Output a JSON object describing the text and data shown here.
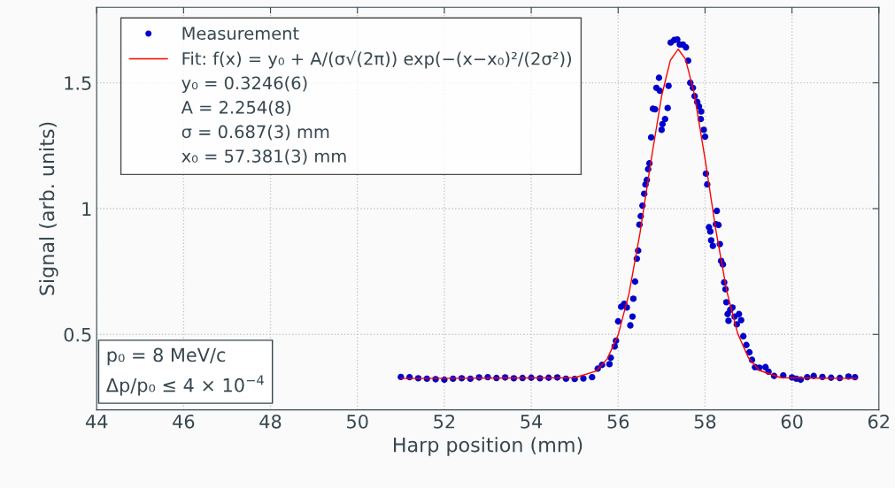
{
  "chart_data": {
    "type": "scatter",
    "xlabel": "Harp position (mm)",
    "ylabel": "Signal (arb. units)",
    "xlim": [
      44,
      62
    ],
    "xticks": [
      44,
      46,
      48,
      50,
      52,
      54,
      56,
      58,
      60,
      62
    ],
    "ylim": [
      0.2,
      1.8
    ],
    "yticks": [
      0.5,
      1,
      1.5
    ],
    "grid": true,
    "legend": "top left",
    "series": [
      {
        "name": "Measurement",
        "color": "#0000cc",
        "marker": "circle",
        "x": [
          51.0,
          51.2,
          51.4,
          51.6,
          51.8,
          52.0,
          52.2,
          52.4,
          52.6,
          52.8,
          53.0,
          53.2,
          53.4,
          53.6,
          53.8,
          54.0,
          54.2,
          54.4,
          54.6,
          54.8,
          55.0,
          55.2,
          55.4,
          55.53,
          55.63,
          55.8,
          55.83,
          55.92,
          55.95,
          56.0,
          56.07,
          56.14,
          56.2,
          56.28,
          56.33,
          56.35,
          56.39,
          56.43,
          56.46,
          56.49,
          56.52,
          56.56,
          56.6,
          56.63,
          56.66,
          56.69,
          56.72,
          56.76,
          56.8,
          56.85,
          56.88,
          56.94,
          56.96,
          57.0,
          57.02,
          57.08,
          57.14,
          57.16,
          57.21,
          57.29,
          57.36,
          57.42,
          57.49,
          57.56,
          57.61,
          57.66,
          57.72,
          57.76,
          57.82,
          57.86,
          57.91,
          57.9,
          57.97,
          58.0,
          58.02,
          58.05,
          58.27,
          58.25,
          58.09,
          58.12,
          58.14,
          58.18,
          58.31,
          58.34,
          58.37,
          58.41,
          58.44,
          58.47,
          58.49,
          58.52,
          58.58,
          58.63,
          58.54,
          58.68,
          58.73,
          58.78,
          58.83,
          58.88,
          58.95,
          59.02,
          59.08,
          59.15,
          59.25,
          59.39,
          59.46,
          59.59,
          59.8,
          60.0,
          60.1,
          60.2,
          60.35,
          60.5,
          60.7,
          60.9,
          61.1,
          61.3,
          61.45
        ],
        "values": [
          0.331,
          0.33,
          0.326,
          0.324,
          0.322,
          0.32,
          0.324,
          0.326,
          0.324,
          0.329,
          0.33,
          0.327,
          0.329,
          0.326,
          0.327,
          0.328,
          0.326,
          0.328,
          0.329,
          0.324,
          0.323,
          0.325,
          0.33,
          0.364,
          0.379,
          0.382,
          0.407,
          0.452,
          0.475,
          0.552,
          0.61,
          0.622,
          0.607,
          0.536,
          0.571,
          0.642,
          0.71,
          0.801,
          0.833,
          0.936,
          0.97,
          1.012,
          1.059,
          1.096,
          1.114,
          1.157,
          1.18,
          1.283,
          1.397,
          1.395,
          1.48,
          1.52,
          1.468,
          1.313,
          1.336,
          1.356,
          1.4,
          1.488,
          1.66,
          1.67,
          1.672,
          1.652,
          1.652,
          1.641,
          1.588,
          1.5,
          1.48,
          1.447,
          1.424,
          1.406,
          1.386,
          1.356,
          1.313,
          1.286,
          1.139,
          1.096,
          0.991,
          0.938,
          0.926,
          0.909,
          0.874,
          0.852,
          0.935,
          0.859,
          0.792,
          0.778,
          0.707,
          0.68,
          0.628,
          0.581,
          0.598,
          0.607,
          0.554,
          0.571,
          0.54,
          0.581,
          0.557,
          0.493,
          0.458,
          0.429,
          0.399,
          0.37,
          0.368,
          0.37,
          0.352,
          0.335,
          0.337,
          0.329,
          0.324,
          0.32,
          0.33,
          0.335,
          0.331,
          0.328,
          0.327,
          0.333,
          0.33
        ]
      },
      {
        "name": "Fit: f(x) = y₀ + A/(σ√(2π)) exp(−(x−x₀)²/(2σ²))",
        "type": "line",
        "color": "#ff0000",
        "marker": "none",
        "line_style": "solid",
        "x": [
          51.0,
          55.0,
          55.5,
          55.75,
          56.0,
          56.25,
          56.5,
          56.75,
          57.0,
          57.2,
          57.381,
          57.55,
          57.75,
          58.0,
          58.25,
          58.5,
          58.75,
          59.0,
          59.25,
          59.75,
          61.5
        ],
        "values": [
          0.325,
          0.328,
          0.355,
          0.403,
          0.498,
          0.662,
          0.9,
          1.183,
          1.447,
          1.589,
          1.634,
          1.594,
          1.458,
          1.197,
          0.913,
          0.672,
          0.504,
          0.406,
          0.357,
          0.328,
          0.325
        ]
      }
    ],
    "annotations": [
      "y₀ = 0.3246(6)",
      "A = 2.254(8)",
      "σ = 0.687(3) mm",
      "x₀ = 57.381(3) mm",
      "p₀ = 8 MeV/c",
      "Δp/p₀ ≤ 4 × 10$^{−4}$"
    ]
  }
}
